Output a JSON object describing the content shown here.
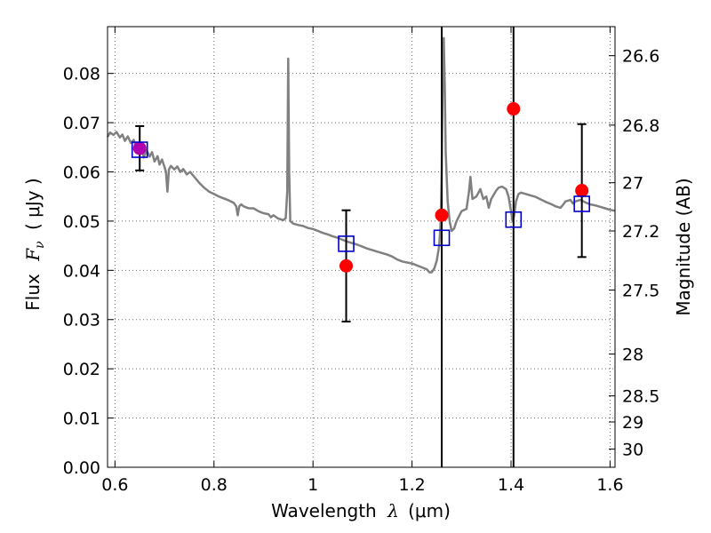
{
  "chart_data": {
    "type": "line",
    "xlabel_left": "Wavelength",
    "xlabel_symbol": "λ",
    "xlabel_unit": "(μm)",
    "ylabel_left": "Flux",
    "ylabel_symbol": "F",
    "ylabel_subscript": "ν",
    "ylabel_unit": "( μJy )",
    "ylabel_right": "Magnitude (AB)",
    "xlim": [
      0.585,
      1.61
    ],
    "ylim": [
      0.0,
      0.0895
    ],
    "x_ticks": [
      0.6,
      0.8,
      1.0,
      1.2,
      1.4,
      1.6
    ],
    "x_tick_labels": [
      "0.6",
      "0.8",
      "1",
      "1.2",
      "1.4",
      "1.6"
    ],
    "y_ticks": [
      0.0,
      0.01,
      0.02,
      0.03,
      0.04,
      0.05,
      0.06,
      0.07,
      0.08
    ],
    "y_tick_labels": [
      "0.00",
      "0.01",
      "0.02",
      "0.03",
      "0.04",
      "0.05",
      "0.06",
      "0.07",
      "0.08"
    ],
    "right_ticks": [
      {
        "flux": 0.0836,
        "label": "26.6"
      },
      {
        "flux": 0.0695,
        "label": "26.8"
      },
      {
        "flux": 0.0578,
        "label": "27"
      },
      {
        "flux": 0.048,
        "label": "27.2"
      },
      {
        "flux": 0.036,
        "label": "27.5"
      },
      {
        "flux": 0.023,
        "label": "28"
      },
      {
        "flux": 0.0145,
        "label": "28.5"
      },
      {
        "flux": 0.0092,
        "label": "29"
      },
      {
        "flux": 0.0037,
        "label": "30"
      }
    ],
    "grid": true,
    "vertical_lines": [
      1.26,
      1.405
    ],
    "series": [
      {
        "kind": "line",
        "color": "#808080",
        "points": [
          [
            0.585,
            0.0671
          ],
          [
            0.59,
            0.068
          ],
          [
            0.597,
            0.0675
          ],
          [
            0.603,
            0.0681
          ],
          [
            0.61,
            0.067
          ],
          [
            0.615,
            0.0676
          ],
          [
            0.62,
            0.0663
          ],
          [
            0.626,
            0.0672
          ],
          [
            0.632,
            0.0659
          ],
          [
            0.638,
            0.0665
          ],
          [
            0.643,
            0.0648
          ],
          [
            0.647,
            0.0638
          ],
          [
            0.653,
            0.0652
          ],
          [
            0.658,
            0.0629
          ],
          [
            0.664,
            0.0644
          ],
          [
            0.67,
            0.0631
          ],
          [
            0.675,
            0.064
          ],
          [
            0.68,
            0.0621
          ],
          [
            0.686,
            0.0632
          ],
          [
            0.69,
            0.0615
          ],
          [
            0.695,
            0.0625
          ],
          [
            0.7,
            0.061
          ],
          [
            0.703,
            0.06
          ],
          [
            0.706,
            0.056
          ],
          [
            0.709,
            0.0605
          ],
          [
            0.713,
            0.0612
          ],
          [
            0.72,
            0.0605
          ],
          [
            0.726,
            0.0611
          ],
          [
            0.732,
            0.06
          ],
          [
            0.738,
            0.0606
          ],
          [
            0.745,
            0.0595
          ],
          [
            0.752,
            0.06
          ],
          [
            0.76,
            0.059
          ],
          [
            0.77,
            0.0578
          ],
          [
            0.78,
            0.0568
          ],
          [
            0.79,
            0.056
          ],
          [
            0.8,
            0.0555
          ],
          [
            0.81,
            0.055
          ],
          [
            0.82,
            0.0546
          ],
          [
            0.83,
            0.0542
          ],
          [
            0.84,
            0.0537
          ],
          [
            0.845,
            0.053
          ],
          [
            0.848,
            0.0512
          ],
          [
            0.851,
            0.053
          ],
          [
            0.855,
            0.0534
          ],
          [
            0.86,
            0.053
          ],
          [
            0.87,
            0.0526
          ],
          [
            0.88,
            0.0526
          ],
          [
            0.89,
            0.052
          ],
          [
            0.9,
            0.0516
          ],
          [
            0.91,
            0.0514
          ],
          [
            0.915,
            0.0508
          ],
          [
            0.92,
            0.0512
          ],
          [
            0.93,
            0.0505
          ],
          [
            0.94,
            0.0502
          ],
          [
            0.945,
            0.0506
          ],
          [
            0.948,
            0.056
          ],
          [
            0.95,
            0.083
          ],
          [
            0.952,
            0.06
          ],
          [
            0.954,
            0.05
          ],
          [
            0.96,
            0.0495
          ],
          [
            0.97,
            0.0492
          ],
          [
            0.98,
            0.049
          ],
          [
            0.99,
            0.0486
          ],
          [
            1.0,
            0.0484
          ],
          [
            1.01,
            0.048
          ],
          [
            1.02,
            0.0476
          ],
          [
            1.03,
            0.0473
          ],
          [
            1.04,
            0.0469
          ],
          [
            1.05,
            0.0466
          ],
          [
            1.06,
            0.0462
          ],
          [
            1.07,
            0.0458
          ],
          [
            1.08,
            0.0455
          ],
          [
            1.09,
            0.0452
          ],
          [
            1.1,
            0.0448
          ],
          [
            1.11,
            0.0444
          ],
          [
            1.12,
            0.0441
          ],
          [
            1.13,
            0.0438
          ],
          [
            1.14,
            0.0435
          ],
          [
            1.15,
            0.0432
          ],
          [
            1.16,
            0.0428
          ],
          [
            1.17,
            0.0422
          ],
          [
            1.18,
            0.0418
          ],
          [
            1.19,
            0.0416
          ],
          [
            1.2,
            0.0414
          ],
          [
            1.21,
            0.041
          ],
          [
            1.22,
            0.0406
          ],
          [
            1.23,
            0.0402
          ],
          [
            1.235,
            0.0396
          ],
          [
            1.24,
            0.0396
          ],
          [
            1.245,
            0.0404
          ],
          [
            1.25,
            0.042
          ],
          [
            1.255,
            0.045
          ],
          [
            1.258,
            0.05
          ],
          [
            1.26,
            0.06
          ],
          [
            1.262,
            0.078
          ],
          [
            1.264,
            0.0872
          ],
          [
            1.266,
            0.078
          ],
          [
            1.268,
            0.064
          ],
          [
            1.272,
            0.054
          ],
          [
            1.276,
            0.05
          ],
          [
            1.28,
            0.048
          ],
          [
            1.285,
            0.0485
          ],
          [
            1.29,
            0.05
          ],
          [
            1.3,
            0.052
          ],
          [
            1.31,
            0.0525
          ],
          [
            1.315,
            0.056
          ],
          [
            1.318,
            0.059
          ],
          [
            1.322,
            0.0545
          ],
          [
            1.33,
            0.055
          ],
          [
            1.338,
            0.0565
          ],
          [
            1.344,
            0.0545
          ],
          [
            1.35,
            0.055
          ],
          [
            1.355,
            0.0527
          ],
          [
            1.36,
            0.0545
          ],
          [
            1.37,
            0.0562
          ],
          [
            1.375,
            0.0568
          ],
          [
            1.382,
            0.057
          ],
          [
            1.39,
            0.0565
          ],
          [
            1.395,
            0.055
          ],
          [
            1.4,
            0.052
          ],
          [
            1.403,
            0.05
          ],
          [
            1.406,
            0.051
          ],
          [
            1.41,
            0.054
          ],
          [
            1.415,
            0.0555
          ],
          [
            1.42,
            0.0558
          ],
          [
            1.43,
            0.0555
          ],
          [
            1.44,
            0.0552
          ],
          [
            1.45,
            0.0549
          ],
          [
            1.46,
            0.0544
          ],
          [
            1.47,
            0.0539
          ],
          [
            1.48,
            0.0535
          ],
          [
            1.49,
            0.053
          ],
          [
            1.5,
            0.0527
          ],
          [
            1.505,
            0.0533
          ],
          [
            1.51,
            0.054
          ],
          [
            1.52,
            0.0543
          ],
          [
            1.525,
            0.0536
          ],
          [
            1.53,
            0.054
          ],
          [
            1.54,
            0.0543
          ],
          [
            1.55,
            0.0538
          ],
          [
            1.56,
            0.0534
          ],
          [
            1.57,
            0.0532
          ],
          [
            1.58,
            0.0529
          ],
          [
            1.59,
            0.0526
          ],
          [
            1.6,
            0.0523
          ],
          [
            1.61,
            0.0521
          ]
        ]
      },
      {
        "kind": "scatter",
        "marker": "circle",
        "color": "#ff0000",
        "points": [
          {
            "x": 0.65,
            "y": 0.0648,
            "yerr": 0.0045
          },
          {
            "x": 1.067,
            "y": 0.0409,
            "yerr": 0.0113
          },
          {
            "x": 1.26,
            "y": 0.0512
          },
          {
            "x": 1.405,
            "y": 0.0728
          },
          {
            "x": 1.543,
            "y": 0.0562,
            "yerr": 0.0135
          }
        ]
      },
      {
        "kind": "scatter",
        "marker": "square",
        "color": "#0000cc",
        "points": [
          {
            "x": 0.65,
            "y": 0.0645
          },
          {
            "x": 1.067,
            "y": 0.0454
          },
          {
            "x": 1.26,
            "y": 0.0466
          },
          {
            "x": 1.405,
            "y": 0.0503
          },
          {
            "x": 1.543,
            "y": 0.0535
          }
        ]
      }
    ]
  }
}
